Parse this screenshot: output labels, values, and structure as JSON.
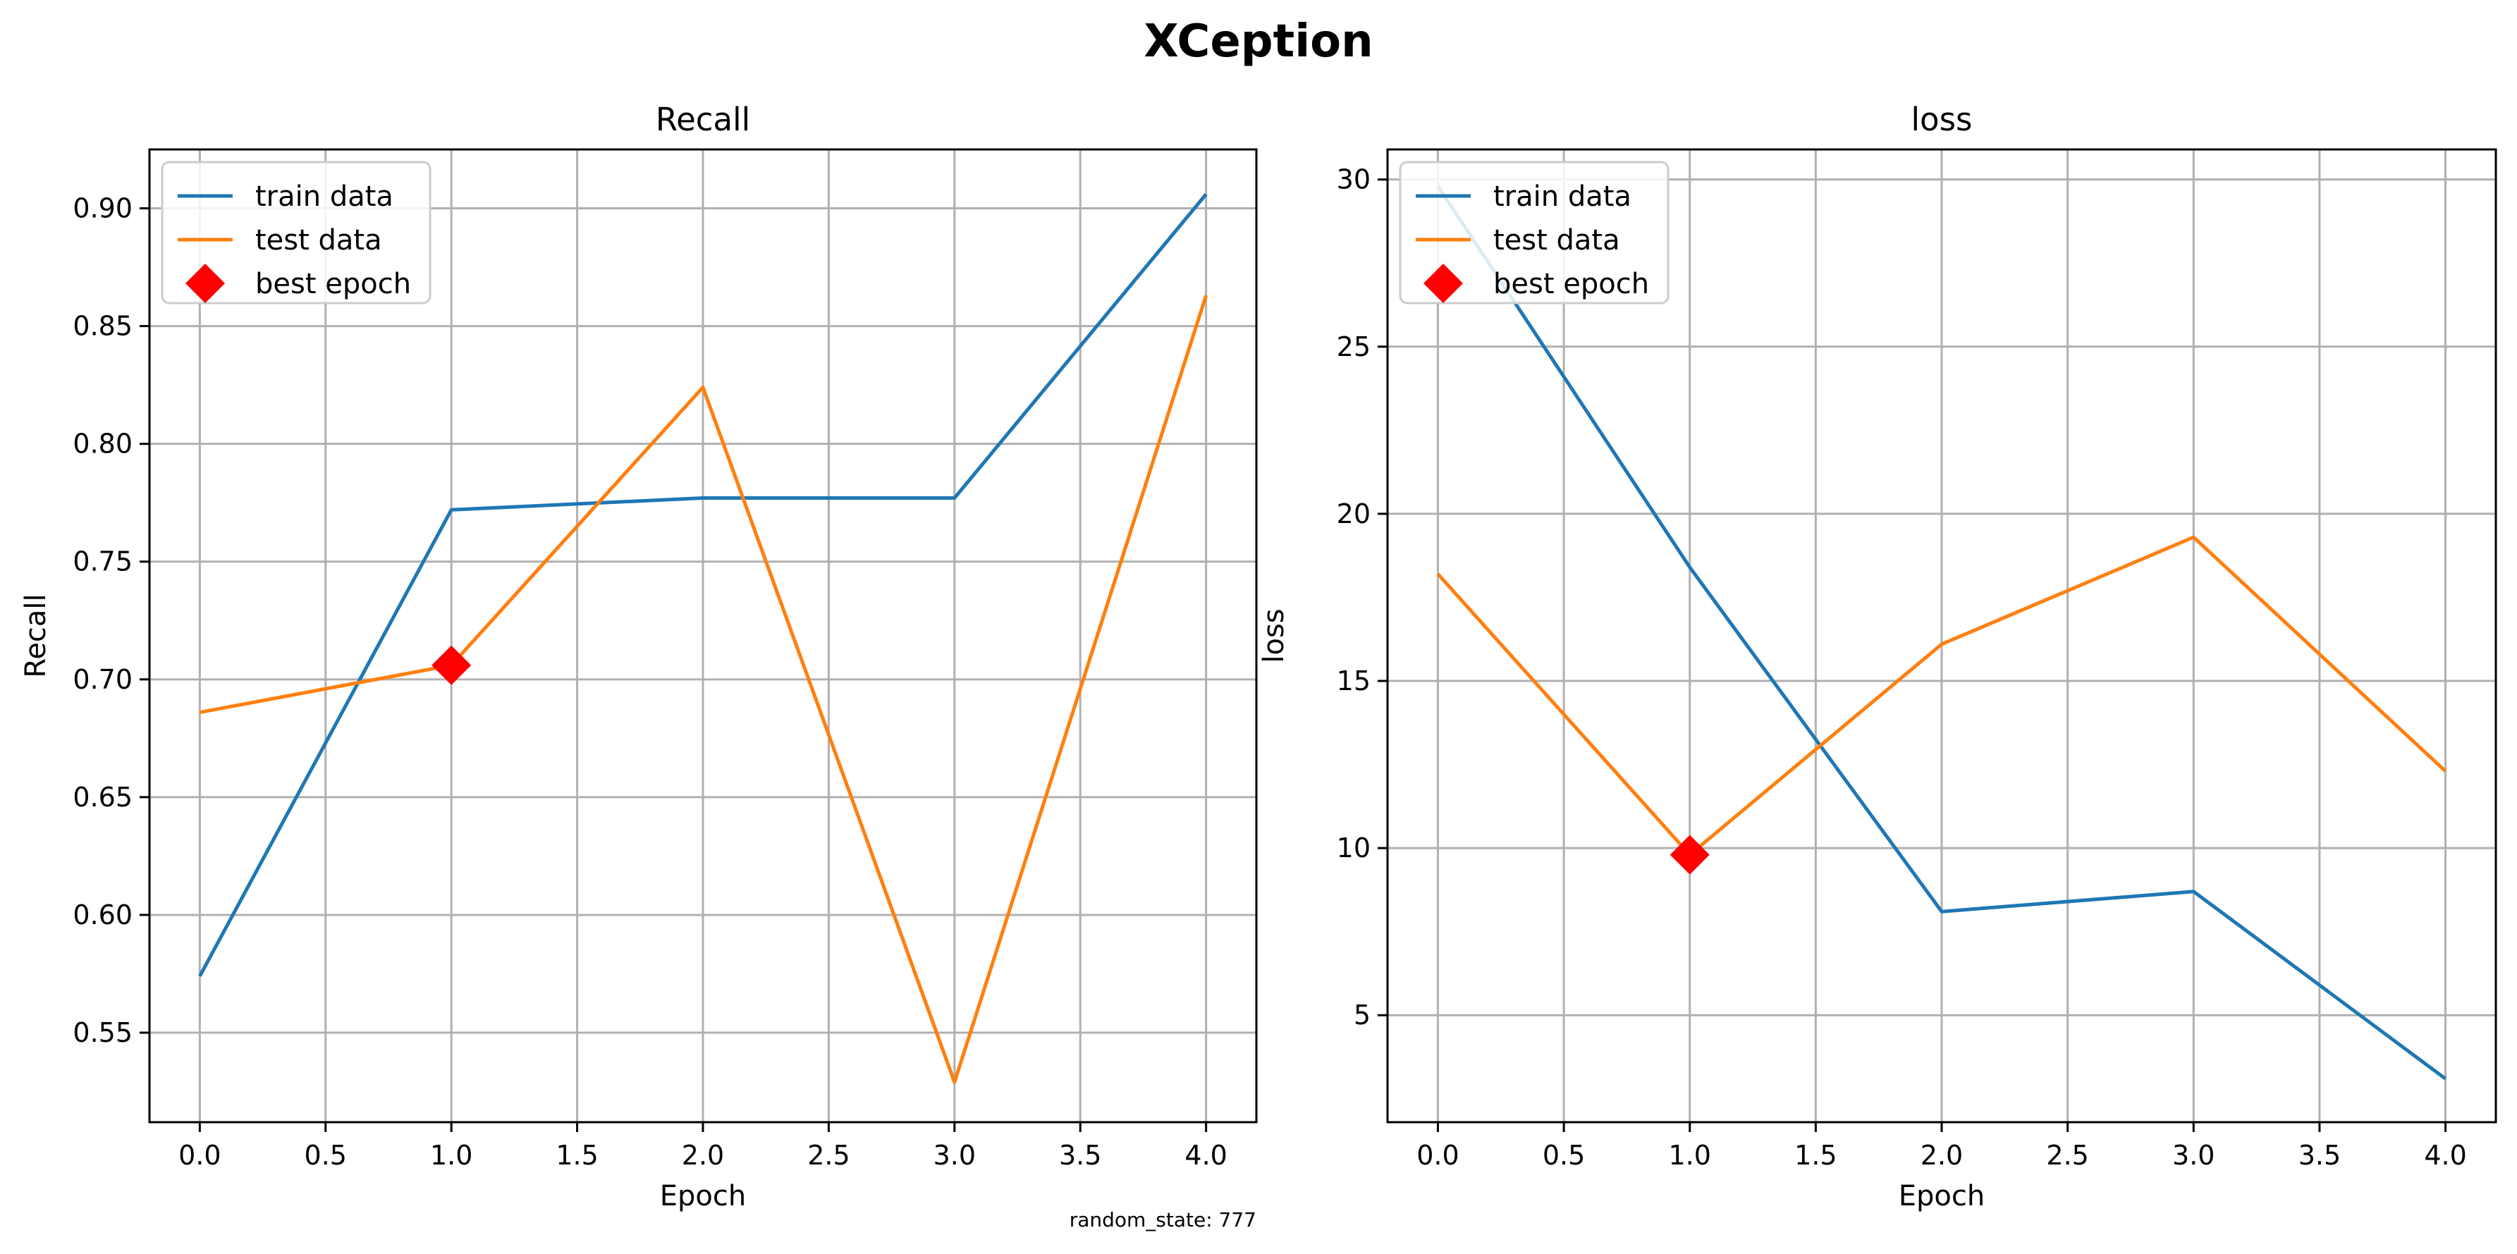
{
  "figure": {
    "suptitle": "XCeption",
    "footnote": "random_state: 777"
  },
  "chart_data": [
    {
      "type": "line",
      "title": "Recall",
      "xlabel": "Epoch",
      "ylabel": "Recall",
      "x": [
        0,
        1,
        2,
        3,
        4
      ],
      "xlim": [
        -0.2,
        4.2
      ],
      "ylim": [
        0.512,
        0.925
      ],
      "xticks": [
        0.0,
        0.5,
        1.0,
        1.5,
        2.0,
        2.5,
        3.0,
        3.5,
        4.0
      ],
      "xtick_labels": [
        "0.0",
        "0.5",
        "1.0",
        "1.5",
        "2.0",
        "2.5",
        "3.0",
        "3.5",
        "4.0"
      ],
      "yticks": [
        0.55,
        0.6,
        0.65,
        0.7,
        0.75,
        0.8,
        0.85,
        0.9
      ],
      "ytick_labels": [
        "0.55",
        "0.60",
        "0.65",
        "0.70",
        "0.75",
        "0.80",
        "0.85",
        "0.90"
      ],
      "grid": true,
      "legend_position": "top-left",
      "series": [
        {
          "name": "train data",
          "color": "#1f77b4",
          "values": [
            0.574,
            0.772,
            0.777,
            0.777,
            0.906
          ]
        },
        {
          "name": "test data",
          "color": "#ff7f0e",
          "values": [
            0.686,
            0.706,
            0.824,
            0.529,
            0.863
          ]
        }
      ],
      "best_epoch": {
        "name": "best epoch",
        "color": "#ff0000",
        "x": 1,
        "y": 0.706
      }
    },
    {
      "type": "line",
      "title": "loss",
      "xlabel": "Epoch",
      "ylabel": "loss",
      "x": [
        0,
        1,
        2,
        3,
        4
      ],
      "xlim": [
        -0.2,
        4.2
      ],
      "ylim": [
        1.8,
        30.9
      ],
      "xticks": [
        0.0,
        0.5,
        1.0,
        1.5,
        2.0,
        2.5,
        3.0,
        3.5,
        4.0
      ],
      "xtick_labels": [
        "0.0",
        "0.5",
        "1.0",
        "1.5",
        "2.0",
        "2.5",
        "3.0",
        "3.5",
        "4.0"
      ],
      "yticks": [
        5,
        10,
        15,
        20,
        25,
        30
      ],
      "ytick_labels": [
        "5",
        "10",
        "15",
        "20",
        "25",
        "30"
      ],
      "grid": true,
      "legend_position": "top-left",
      "series": [
        {
          "name": "train data",
          "color": "#1f77b4",
          "values": [
            29.8,
            18.4,
            8.1,
            8.7,
            3.1
          ]
        },
        {
          "name": "test data",
          "color": "#ff7f0e",
          "values": [
            18.2,
            9.8,
            16.1,
            19.3,
            12.3
          ]
        }
      ],
      "best_epoch": {
        "name": "best epoch",
        "color": "#ff0000",
        "x": 1,
        "y": 9.8
      }
    }
  ]
}
